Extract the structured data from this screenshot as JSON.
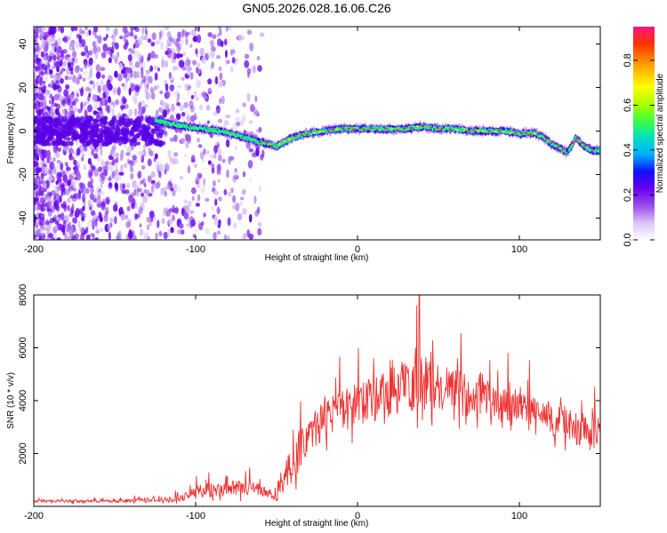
{
  "title": "GN05.2026.028.16.06.C26",
  "chart_data": [
    {
      "type": "heatmap",
      "title": "GN05.2026.028.16.06.C26",
      "xlabel": "Height of straight line (km)",
      "ylabel": "Frequency (Hz)",
      "xlim": [
        -200,
        150
      ],
      "ylim": [
        -50,
        48
      ],
      "xticks": [
        -200,
        -100,
        0,
        100
      ],
      "xtick_labels": [
        "-200",
        "-100",
        "0",
        "100"
      ],
      "yticks": [
        -40,
        -20,
        0,
        20,
        40
      ],
      "ytick_labels": [
        "-40",
        "-20",
        "0",
        "20",
        "40"
      ],
      "colorbar": {
        "label": "Normalized spectral amplitude",
        "range": [
          0,
          0.95
        ],
        "ticks": [
          0,
          0.2,
          0.4,
          0.6,
          0.8
        ],
        "tick_labels": [
          "0.0",
          "0.2",
          "0.4",
          "0.6",
          "0.8"
        ],
        "colormap": [
          "#ffffff",
          "#d8c4f6",
          "#9b4de8",
          "#6a00f0",
          "#1010ff",
          "#00b0ff",
          "#00e0c0",
          "#40ff40",
          "#b0ff00",
          "#ffff00",
          "#ffa000",
          "#ff3000",
          "#ff1480"
        ]
      },
      "ridge": {
        "description_series": "dominant frequency vs height",
        "x": [
          -125,
          -115,
          -105,
          -95,
          -85,
          -75,
          -65,
          -55,
          -50,
          -45,
          -40,
          -30,
          -20,
          -10,
          0,
          10,
          20,
          30,
          40,
          50,
          60,
          70,
          80,
          90,
          100,
          110,
          115,
          120,
          125,
          130,
          135,
          140,
          145,
          150
        ],
        "y": [
          5,
          3,
          2,
          1,
          0,
          -2,
          -4,
          -6,
          -7,
          -5,
          -3,
          -1,
          0,
          1,
          1,
          1,
          1,
          1,
          2,
          1,
          1,
          0,
          0,
          0,
          -1,
          -1,
          -3,
          -6,
          -8,
          -10,
          -3,
          -7,
          -9,
          -9
        ]
      },
      "noise_region": {
        "x_range": [
          -200,
          -58
        ],
        "note": "scattered purple spectral noise"
      }
    },
    {
      "type": "line",
      "xlabel": "Height of straight line (km)",
      "ylabel": "SNR (10 * v/v)",
      "xlim": [
        -200,
        150
      ],
      "ylim": [
        0,
        8000
      ],
      "xticks": [
        -200,
        -100,
        0,
        100
      ],
      "xtick_labels": [
        "-200",
        "-100",
        "0",
        "100"
      ],
      "yticks": [
        2000,
        4000,
        6000,
        8000
      ],
      "ytick_labels": [
        "2000",
        "4000",
        "6000",
        "8000"
      ],
      "series": [
        {
          "name": "SNR",
          "color": "#ee3333",
          "envelope": {
            "x": [
              -200,
              -150,
              -120,
              -110,
              -100,
              -90,
              -80,
              -70,
              -60,
              -50,
              -45,
              -40,
              -35,
              -30,
              -25,
              -20,
              -10,
              0,
              10,
              20,
              30,
              40,
              50,
              60,
              70,
              80,
              90,
              100,
              110,
              120,
              130,
              140,
              150
            ],
            "mean": [
              200,
              200,
              250,
              300,
              500,
              600,
              700,
              700,
              650,
              300,
              1000,
              1500,
              2200,
              2700,
              3000,
              3400,
              3600,
              3800,
              4000,
              4300,
              4600,
              4700,
              4600,
              4400,
              4200,
              4000,
              3800,
              3600,
              3400,
              3300,
              3100,
              2900,
              2700
            ],
            "spread": [
              100,
              100,
              150,
              200,
              400,
              500,
              500,
              500,
              400,
              300,
              800,
              1000,
              1500,
              1300,
              1300,
              1400,
              1400,
              1500,
              1600,
              1800,
              1900,
              1900,
              1700,
              1500,
              1400,
              1300,
              1300,
              1300,
              1300,
              1200,
              1200,
              1200,
              1200
            ],
            "peak": {
              "x": 38,
              "y": 8000
            }
          }
        }
      ]
    }
  ]
}
